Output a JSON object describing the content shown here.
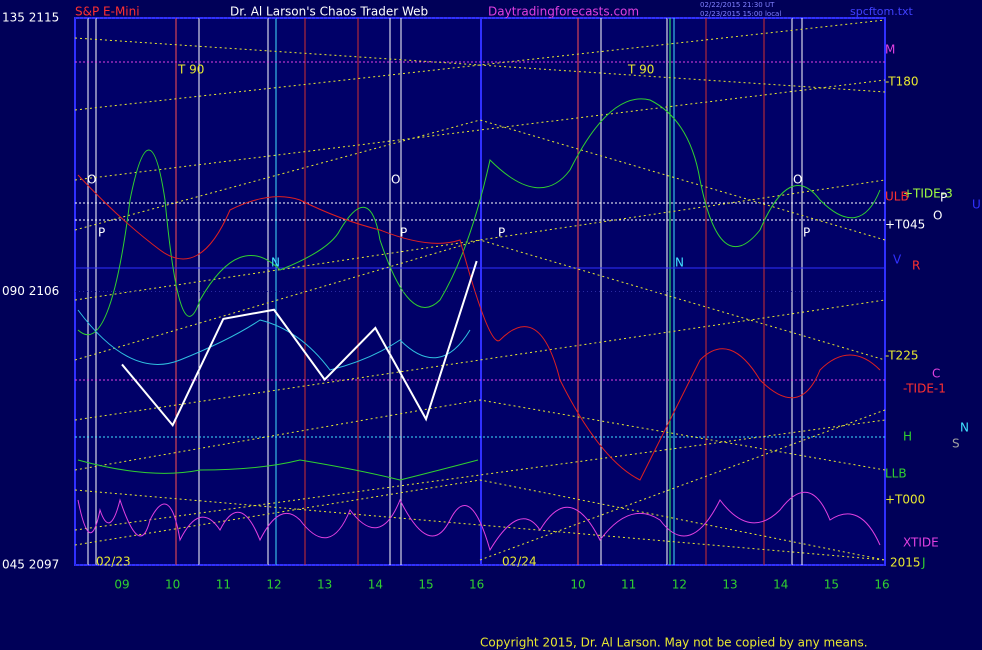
{
  "chart_data": {
    "type": "line",
    "symbol": "S&P E-Mini",
    "title": "Dr. Al Larson's Chaos Trader Web",
    "site": "Daytradingforecasts.com",
    "stamp_lines": [
      "02/22/2015 21:30 UT",
      "02/23/2015 15:00 local"
    ],
    "file": "spcftom.txt",
    "categories": [
      "09",
      "10",
      "11",
      "12",
      "13",
      "14",
      "15",
      "16",
      null,
      "10",
      "11",
      "12",
      "13",
      "14",
      "15",
      "16"
    ],
    "series": [
      {
        "name": "S&P E-Mini",
        "color": "#ffffff",
        "values": [
          2103.6,
          2101.6,
          2105.1,
          2105.4,
          2103.1,
          2104.8,
          2101.8,
          2107.0,
          null,
          null,
          null,
          null,
          null,
          null,
          null,
          null
        ]
      }
    ],
    "ylim": [
      2097,
      2115
    ],
    "yticks": [
      {
        "value": 2115,
        "label": "135 2115"
      },
      {
        "value": 2106,
        "label": "090 2106"
      },
      {
        "value": 2097,
        "label": "045 2097"
      }
    ],
    "dates": [
      "02/23",
      "02/24",
      "2015"
    ],
    "annotations": [
      "M",
      "-T180",
      "+TIDE-3",
      "ULB",
      "P",
      "O",
      "U",
      "+T045",
      "V",
      "R",
      "-T225",
      "C",
      "-TIDE-1",
      "N",
      "S",
      "H",
      "LLB",
      "+T000",
      "XTIDE",
      "J",
      "T  90",
      "T  90",
      "O",
      "O",
      "O",
      "P",
      "P",
      "P",
      "P",
      "N",
      "N"
    ],
    "copyright": "Copyright 2015, Dr. Al Larson. May not be copied by any means."
  }
}
